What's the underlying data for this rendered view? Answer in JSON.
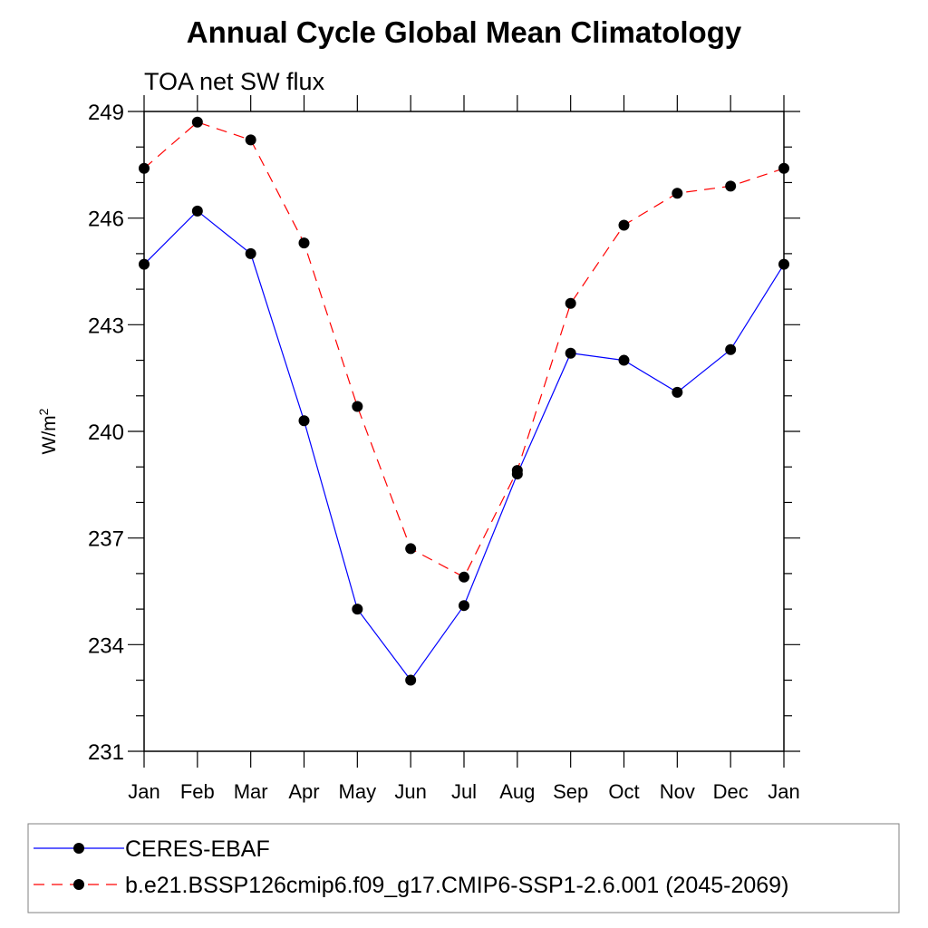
{
  "chart_data": {
    "type": "line",
    "title": "Annual Cycle Global Mean Climatology",
    "subtitle": "TOA net SW flux",
    "ylabel": "W/m",
    "ylabel_sup": "2",
    "xlabel": "",
    "categories": [
      "Jan",
      "Feb",
      "Mar",
      "Apr",
      "May",
      "Jun",
      "Jul",
      "Aug",
      "Sep",
      "Oct",
      "Nov",
      "Dec",
      "Jan"
    ],
    "ylim": [
      231,
      249
    ],
    "yticks": [
      "231",
      "234",
      "237",
      "240",
      "243",
      "246",
      "249"
    ],
    "series": [
      {
        "name": "CERES-EBAF",
        "color": "#0000ff",
        "dash": "solid",
        "values": [
          244.7,
          246.2,
          245.0,
          240.3,
          235.0,
          233.0,
          235.1,
          238.8,
          242.2,
          242.0,
          241.1,
          242.3,
          244.7
        ]
      },
      {
        "name": "b.e21.BSSP126cmip6.f09_g17.CMIP6-SSP1-2.6.001 (2045-2069)",
        "color": "#ff0000",
        "dash": "dashed",
        "values": [
          247.4,
          248.7,
          248.2,
          245.3,
          240.7,
          236.7,
          235.9,
          238.9,
          243.6,
          245.8,
          246.7,
          246.9,
          247.4
        ]
      }
    ],
    "grid": false,
    "legend_placement": "bottom"
  }
}
